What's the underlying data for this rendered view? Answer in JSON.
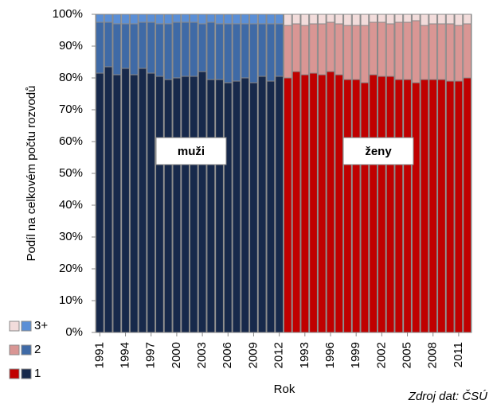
{
  "chart_data": {
    "type": "stacked_bar",
    "y_label": "Podíl na celkovém počtu rozvodů",
    "x_label": "Rok",
    "source": "Zdroj dat: ČSÚ",
    "annotations": [
      "muži",
      "ženy"
    ],
    "categories": [
      "1991",
      null,
      null,
      "1994",
      null,
      null,
      "1997",
      null,
      null,
      "2000",
      null,
      null,
      "2003",
      null,
      null,
      "2006",
      null,
      null,
      "2009",
      null,
      null,
      "2012",
      null,
      null,
      "1993",
      null,
      null,
      "1996",
      null,
      null,
      "1999",
      null,
      null,
      "2002",
      null,
      null,
      "2005",
      null,
      null,
      "2008",
      null,
      null,
      "2011",
      null
    ],
    "ylim": [
      0,
      100
    ],
    "yticks": [
      {
        "value": 0,
        "label": "0%"
      },
      {
        "value": 10,
        "label": "10%"
      },
      {
        "value": 20,
        "label": "20%"
      },
      {
        "value": 30,
        "label": "30%"
      },
      {
        "value": 40,
        "label": "40%"
      },
      {
        "value": 50,
        "label": "50%"
      },
      {
        "value": 60,
        "label": "60%"
      },
      {
        "value": 70,
        "label": "70%"
      },
      {
        "value": 80,
        "label": "80%"
      },
      {
        "value": 90,
        "label": "90%"
      },
      {
        "value": 100,
        "label": "100%"
      }
    ],
    "grid": false,
    "series": [
      {
        "name": "1",
        "color": "#17294b",
        "values": [
          81.5,
          83.5,
          81,
          83,
          81,
          83,
          81.5,
          80.5,
          79.5,
          80,
          80.5,
          80.5,
          82,
          79.5,
          79.5,
          78.5,
          79,
          80,
          78.5,
          80.5,
          79,
          80.5,
          null,
          null,
          null,
          null,
          null,
          null,
          null,
          null,
          null,
          null,
          null,
          null,
          null,
          null,
          null,
          null,
          null,
          null,
          null,
          null,
          null,
          null
        ]
      },
      {
        "name": "2",
        "color": "#3f6aa6",
        "values": [
          16,
          14,
          16,
          14,
          16,
          14.5,
          16,
          16.5,
          17.5,
          17.5,
          17,
          17,
          15,
          18,
          17.5,
          18.5,
          18,
          17,
          18.5,
          16.5,
          18,
          16.5,
          null,
          null,
          null,
          null,
          null,
          null,
          null,
          null,
          null,
          null,
          null,
          null,
          null,
          null,
          null,
          null,
          null,
          null,
          null,
          null,
          null,
          null
        ]
      },
      {
        "name": "3+",
        "color": "#5b8fd6",
        "values": [
          2.5,
          2.5,
          3,
          3,
          3,
          2.5,
          2.5,
          3,
          3,
          2.5,
          2.5,
          2.5,
          3,
          2.5,
          3,
          3,
          3,
          3,
          3,
          3,
          3,
          3,
          null,
          null,
          null,
          null,
          null,
          null,
          null,
          null,
          null,
          null,
          null,
          null,
          null,
          null,
          null,
          null,
          null,
          null,
          null,
          null,
          null,
          null
        ]
      },
      {
        "name": "1",
        "color": "#c00000",
        "values": [
          null,
          null,
          null,
          null,
          null,
          null,
          null,
          null,
          null,
          null,
          null,
          null,
          null,
          null,
          null,
          null,
          null,
          null,
          null,
          null,
          null,
          null,
          80,
          82,
          81,
          81.5,
          81,
          82,
          81,
          79.5,
          79.5,
          78.5,
          81,
          80.5,
          80.5,
          79.5,
          79.5,
          78.5,
          79.5,
          79.5,
          79.5,
          79,
          79,
          80
        ]
      },
      {
        "name": "2",
        "color": "#d99694",
        "values": [
          null,
          null,
          null,
          null,
          null,
          null,
          null,
          null,
          null,
          null,
          null,
          null,
          null,
          null,
          null,
          null,
          null,
          null,
          null,
          null,
          null,
          null,
          16.5,
          15,
          15.5,
          15.5,
          16,
          15.5,
          16,
          17,
          17,
          18,
          16.5,
          17,
          16.5,
          18,
          18,
          19.5,
          17,
          17.5,
          17.5,
          18,
          17.5,
          17
        ]
      },
      {
        "name": "3+",
        "color": "#f2dcdb",
        "values": [
          null,
          null,
          null,
          null,
          null,
          null,
          null,
          null,
          null,
          null,
          null,
          null,
          null,
          null,
          null,
          null,
          null,
          null,
          null,
          null,
          null,
          null,
          3.5,
          3,
          3.5,
          3,
          3,
          2.5,
          3,
          3.5,
          3.5,
          3.5,
          2.5,
          2.5,
          3,
          2.5,
          2.5,
          2,
          3.5,
          3,
          3,
          3,
          3.5,
          3
        ]
      }
    ]
  }
}
